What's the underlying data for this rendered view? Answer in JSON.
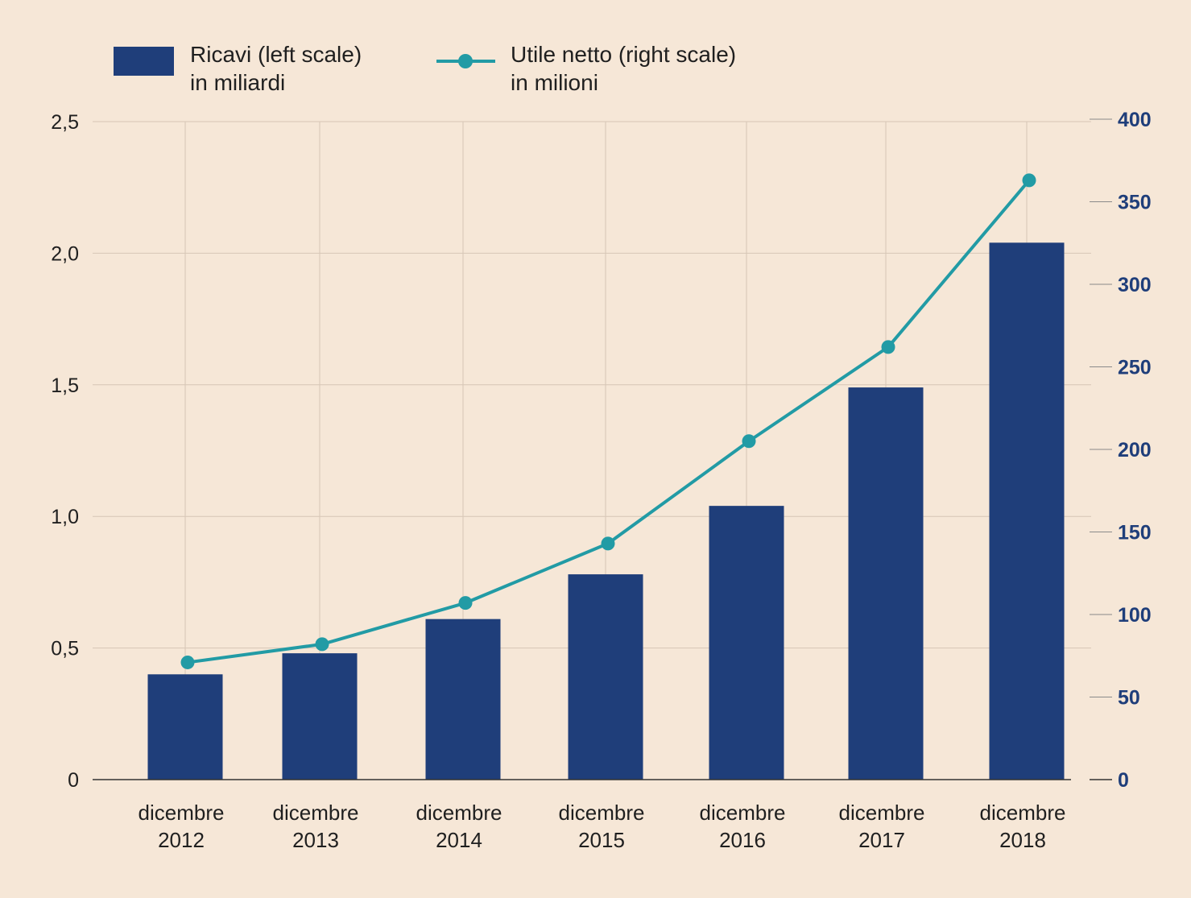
{
  "chart_data": {
    "type": "bar",
    "categories": [
      [
        "dicembre",
        "2012"
      ],
      [
        "dicembre",
        "2013"
      ],
      [
        "dicembre",
        "2014"
      ],
      [
        "dicembre",
        "2015"
      ],
      [
        "dicembre",
        "2016"
      ],
      [
        "dicembre",
        "2017"
      ],
      [
        "dicembre",
        "2018"
      ]
    ],
    "series": [
      {
        "name": "Ricavi (left scale)",
        "name_line2": "in miliardi",
        "type": "bar",
        "axis": "left",
        "color": "#1f3e7a",
        "values": [
          0.4,
          0.48,
          0.61,
          0.78,
          1.04,
          1.49,
          2.04
        ]
      },
      {
        "name": "Utile netto (right scale)",
        "name_line2": "in milioni",
        "type": "line",
        "axis": "right",
        "color": "#229ba5",
        "values": [
          71,
          82,
          107,
          143,
          205,
          262,
          363
        ]
      }
    ],
    "left_axis": {
      "range": [
        0,
        2.5
      ],
      "ticks": [
        0,
        0.5,
        1.0,
        1.5,
        2.0,
        2.5
      ],
      "tick_labels": [
        "0",
        "0,5",
        "1,0",
        "1,5",
        "2,0",
        "2,5"
      ]
    },
    "right_axis": {
      "range": [
        0,
        400
      ],
      "ticks": [
        0,
        50,
        100,
        150,
        200,
        250,
        300,
        350,
        400
      ],
      "tick_labels": [
        "0",
        "50",
        "100",
        "150",
        "200",
        "250",
        "300",
        "350",
        "400"
      ]
    },
    "grid": true,
    "legend_position": "top-left",
    "background": "#f6e7d7"
  }
}
